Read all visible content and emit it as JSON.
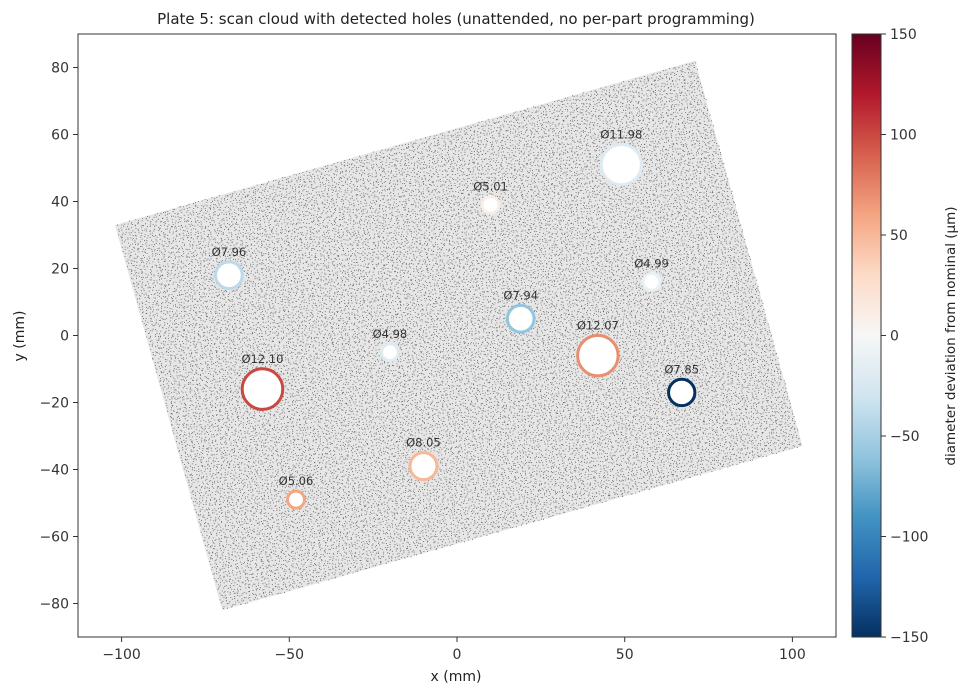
{
  "chart_data": {
    "type": "scatter",
    "title": "Plate 5: scan cloud with detected holes (unattended, no per-part programming)",
    "xlabel": "x (mm)",
    "ylabel": "y (mm)",
    "xlim": [
      -113,
      113
    ],
    "ylim": [
      -90,
      90
    ],
    "xticks": [
      -100,
      -50,
      0,
      50,
      100
    ],
    "yticks": [
      -80,
      -60,
      -40,
      -20,
      0,
      20,
      40,
      60,
      80
    ],
    "grid": false,
    "scan_cloud": {
      "corners": [
        [
          -102,
          33
        ],
        [
          -70,
          -82
        ],
        [
          103,
          -33
        ],
        [
          71,
          82
        ]
      ],
      "color": "#555555"
    },
    "holes": [
      {
        "x": 49,
        "y": 51,
        "label": "Ø11.98",
        "diameter": 11.98,
        "deviation_um": -20
      },
      {
        "x": 10,
        "y": 39,
        "label": "Ø5.01",
        "diameter": 5.01,
        "deviation_um": 10
      },
      {
        "x": -68,
        "y": 18,
        "label": "Ø7.96",
        "diameter": 7.96,
        "deviation_um": -40
      },
      {
        "x": 58,
        "y": 16,
        "label": "Ø4.99",
        "diameter": 4.99,
        "deviation_um": -10
      },
      {
        "x": 19,
        "y": 5,
        "label": "Ø7.94",
        "diameter": 7.94,
        "deviation_um": -60
      },
      {
        "x": -20,
        "y": -5,
        "label": "Ø4.98",
        "diameter": 4.98,
        "deviation_um": -20
      },
      {
        "x": 42,
        "y": -6,
        "label": "Ø12.07",
        "diameter": 12.07,
        "deviation_um": 70
      },
      {
        "x": -58,
        "y": -16,
        "label": "Ø12.10",
        "diameter": 12.1,
        "deviation_um": 100
      },
      {
        "x": 67,
        "y": -17,
        "label": "Ø7.85",
        "diameter": 7.85,
        "deviation_um": -150
      },
      {
        "x": -10,
        "y": -39,
        "label": "Ø8.05",
        "diameter": 8.05,
        "deviation_um": 50
      },
      {
        "x": -48,
        "y": -49,
        "label": "Ø5.06",
        "diameter": 5.06,
        "deviation_um": 60
      }
    ],
    "colorbar": {
      "label": "diameter deviation from nominal (µm)",
      "range": [
        -150,
        150
      ],
      "ticks": [
        -150,
        -100,
        -50,
        0,
        50,
        100,
        150
      ],
      "colormap": [
        "#053061",
        "#2166ac",
        "#4393c3",
        "#92c5de",
        "#d1e5f0",
        "#f7f7f7",
        "#fddbc7",
        "#f4a582",
        "#d6604d",
        "#b2182b",
        "#67001f"
      ]
    }
  }
}
